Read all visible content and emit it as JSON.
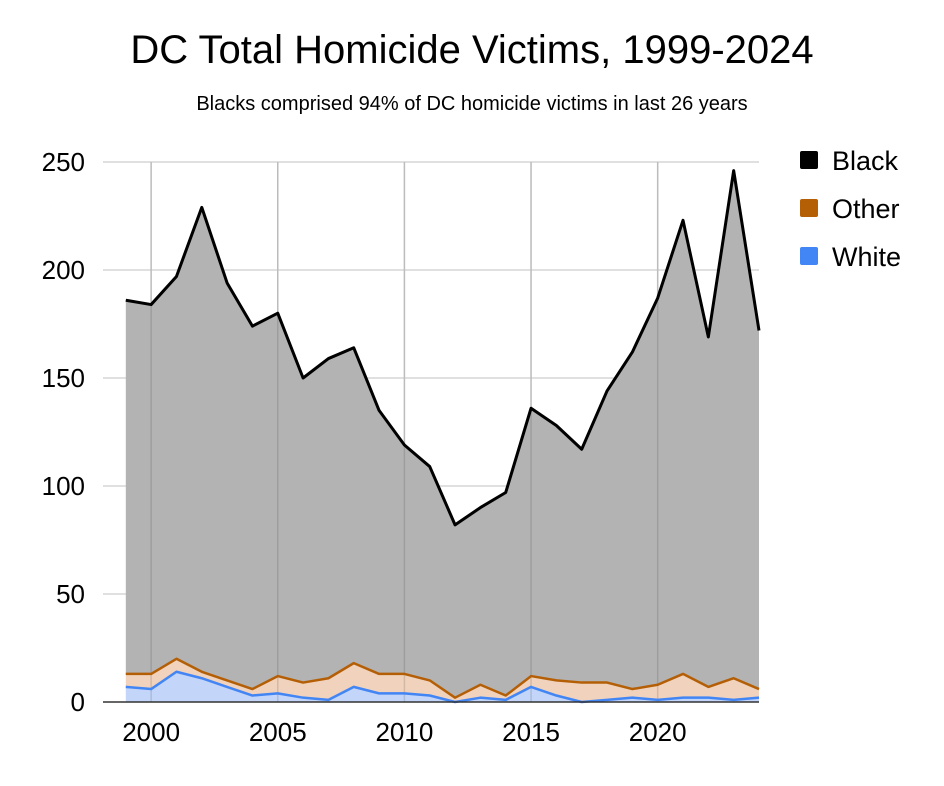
{
  "chart_data": {
    "type": "area",
    "stacked": true,
    "title": "DC Total Homicide Victims, 1999-2024",
    "subtitle": "Blacks comprised 94% of DC homicide victims in last 26 years",
    "x": [
      1999,
      2000,
      2001,
      2002,
      2003,
      2004,
      2005,
      2006,
      2007,
      2008,
      2009,
      2010,
      2011,
      2012,
      2013,
      2014,
      2015,
      2016,
      2017,
      2018,
      2019,
      2020,
      2021,
      2022,
      2023,
      2024
    ],
    "xticks": [
      2000,
      2005,
      2010,
      2015,
      2020
    ],
    "xlim": [
      1998.1,
      2024
    ],
    "ylim": [
      0,
      250
    ],
    "yticks": [
      0,
      50,
      100,
      150,
      200,
      250
    ],
    "grid": true,
    "legend_position": "right",
    "series": [
      {
        "name": "White",
        "color": "#4285f4",
        "fill": "#c3d5f9",
        "values": [
          7,
          6,
          14,
          11,
          7,
          3,
          4,
          2,
          1,
          7,
          4,
          4,
          3,
          0,
          2,
          1,
          7,
          3,
          0,
          1,
          2,
          1,
          2,
          2,
          1,
          2
        ]
      },
      {
        "name": "Other",
        "color": "#b45f06",
        "fill": "#f1d2bc",
        "values": [
          6,
          7,
          6,
          3,
          3,
          3,
          8,
          7,
          10,
          11,
          9,
          9,
          7,
          2,
          6,
          2,
          5,
          7,
          9,
          8,
          4,
          7,
          11,
          5,
          10,
          4
        ]
      },
      {
        "name": "Black",
        "color": "#000000",
        "fill": "#b3b3b3",
        "values": [
          173,
          171,
          177,
          215,
          184,
          168,
          168,
          141,
          148,
          146,
          122,
          106,
          99,
          80,
          82,
          94,
          124,
          118,
          108,
          135,
          156,
          179,
          210,
          162,
          235,
          166
        ]
      }
    ],
    "legend_order": [
      "Black",
      "Other",
      "White"
    ]
  }
}
